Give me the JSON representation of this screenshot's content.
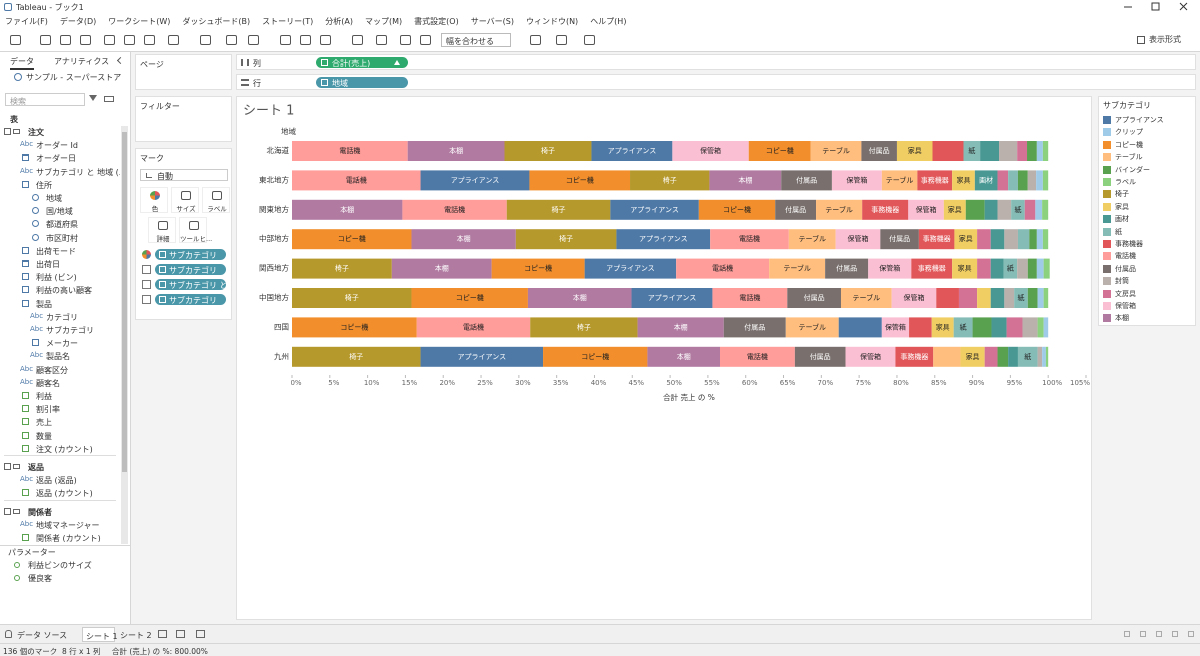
{
  "window": {
    "title": "Tableau - ブック1"
  },
  "menu": [
    "ファイル(F)",
    "データ(D)",
    "ワークシート(W)",
    "ダッシュボード(B)",
    "ストーリー(T)",
    "分析(A)",
    "マップ(M)",
    "書式設定(O)",
    "サーバー(S)",
    "ウィンドウ(N)",
    "ヘルプ(H)"
  ],
  "toolbar": {
    "fit": "幅を合わせる",
    "show_me": "表示形式"
  },
  "data_pane": {
    "tabs": [
      "データ",
      "アナリティクス"
    ],
    "source": "サンプル - スーパーストア",
    "search": "検索",
    "table_header": "表",
    "sections": [
      {
        "name": "注文",
        "fields": [
          {
            "icon": "Abc",
            "name": "オーダー Id"
          },
          {
            "role": "date",
            "name": "オーダー日"
          },
          {
            "icon": "Abc",
            "name": "サブカテゴリ と 地域 (..."
          },
          {
            "role": "hierarchy",
            "name": "住所",
            "children": [
              {
                "role": "geo",
                "name": "地域"
              },
              {
                "role": "geo",
                "name": "国/地域"
              },
              {
                "role": "geo",
                "name": "都道府県"
              },
              {
                "role": "geo",
                "name": "市区町村"
              }
            ]
          },
          {
            "role": "dimension",
            "name": "出荷モード"
          },
          {
            "role": "date",
            "name": "出荷日"
          },
          {
            "role": "bin",
            "name": "利益 (ビン)"
          },
          {
            "role": "set",
            "name": "利益の高い顧客"
          },
          {
            "role": "hierarchy",
            "name": "製品",
            "children": [
              {
                "icon": "Abc",
                "name": "カテゴリ"
              },
              {
                "icon": "Abc",
                "name": "サブカテゴリ"
              },
              {
                "role": "dimension",
                "name": "メーカー"
              },
              {
                "icon": "Abc",
                "name": "製品名"
              }
            ]
          },
          {
            "icon": "Abc",
            "name": "顧客区分"
          },
          {
            "icon": "Abc",
            "name": "顧客名"
          },
          {
            "role": "measure",
            "name": "利益"
          },
          {
            "role": "measure",
            "name": "割引率"
          },
          {
            "role": "measure",
            "name": "売上"
          },
          {
            "role": "measure",
            "name": "数量"
          },
          {
            "role": "measure",
            "name": "注文 (カウント)"
          }
        ]
      },
      {
        "name": "返品",
        "fields": [
          {
            "icon": "Abc",
            "name": "返品 (返品)"
          },
          {
            "role": "measure",
            "name": "返品 (カウント)"
          }
        ]
      },
      {
        "name": "関係者",
        "fields": [
          {
            "icon": "Abc",
            "name": "地域マネージャー"
          },
          {
            "role": "measure",
            "name": "関係者 (カウント)"
          }
        ]
      }
    ],
    "parameters": {
      "title": "パラメーター",
      "fields": [
        "利益ビンのサイズ",
        "優良客"
      ]
    }
  },
  "cards": {
    "pages": "ページ",
    "filters": "フィルター",
    "marks": "マーク",
    "mark_type": "自動",
    "buttons": [
      "色",
      "サイズ",
      "ラベル",
      "詳細",
      "ツールヒ..."
    ],
    "pills": [
      "サブカテゴリ",
      "サブカテゴリ",
      "サブカテゴリ と...",
      "サブカテゴリ"
    ]
  },
  "shelves": {
    "columns": {
      "label": "列",
      "pill": "合計(売上)"
    },
    "rows": {
      "label": "行",
      "pill": "地域"
    }
  },
  "chart_data": {
    "type": "bar",
    "orientation": "horizontal",
    "stacked": true,
    "title": "シート 1",
    "y_header": "地域",
    "x_label": "合計 売上 の %",
    "xlim": [
      0,
      105
    ],
    "xticks": [
      {
        "value": 0,
        "label": "0%"
      },
      {
        "value": 5,
        "label": "5%"
      },
      {
        "value": 10,
        "label": "10%"
      },
      {
        "value": 15,
        "label": "15%"
      },
      {
        "value": 20,
        "label": "20%"
      },
      {
        "value": 25,
        "label": "25%"
      },
      {
        "value": 30,
        "label": "30%"
      },
      {
        "value": 35,
        "label": "35%"
      },
      {
        "value": 40,
        "label": "40%"
      },
      {
        "value": 45,
        "label": "45%"
      },
      {
        "value": 50,
        "label": "50%"
      },
      {
        "value": 55,
        "label": "55%"
      },
      {
        "value": 60,
        "label": "60%"
      },
      {
        "value": 65,
        "label": "65%"
      },
      {
        "value": 70,
        "label": "70%"
      },
      {
        "value": 75,
        "label": "75%"
      },
      {
        "value": 80,
        "label": "80%"
      },
      {
        "value": 85,
        "label": "85%"
      },
      {
        "value": 90,
        "label": "90%"
      },
      {
        "value": 95,
        "label": "95%"
      },
      {
        "value": 100,
        "label": "100%"
      },
      {
        "value": 105,
        "label": "105%"
      }
    ],
    "grid": false,
    "categories": [
      "北海道",
      "東北地方",
      "関東地方",
      "中部地方",
      "関西地方",
      "中国地方",
      "四国",
      "九州"
    ],
    "legend": {
      "title": "サブカテゴリ",
      "position": "right",
      "items": [
        {
          "name": "アプライアンス",
          "color": "#4e79a7"
        },
        {
          "name": "クリップ",
          "color": "#a0cbe8"
        },
        {
          "name": "コピー機",
          "color": "#f28e2b"
        },
        {
          "name": "テーブル",
          "color": "#ffbe7d"
        },
        {
          "name": "バインダー",
          "color": "#59a14f"
        },
        {
          "name": "ラベル",
          "color": "#8cd17d"
        },
        {
          "name": "椅子",
          "color": "#b6992d"
        },
        {
          "name": "家具",
          "color": "#f1ce63"
        },
        {
          "name": "画材",
          "color": "#499894"
        },
        {
          "name": "紙",
          "color": "#86bcb6"
        },
        {
          "name": "事務機器",
          "color": "#e15759"
        },
        {
          "name": "電話機",
          "color": "#ff9d9a"
        },
        {
          "name": "付属品",
          "color": "#79706e"
        },
        {
          "name": "封筒",
          "color": "#bab0ac"
        },
        {
          "name": "文房具",
          "color": "#d37295"
        },
        {
          "name": "保管箱",
          "color": "#fabfd2"
        },
        {
          "name": "本棚",
          "color": "#b07aa1"
        }
      ]
    },
    "bars": [
      [
        {
          "name": "電話機",
          "value": 15.3
        },
        {
          "name": "本棚",
          "value": 12.8
        },
        {
          "name": "椅子",
          "value": 11.5
        },
        {
          "name": "アプライアンス",
          "value": 10.7
        },
        {
          "name": "保管箱",
          "value": 10.1
        },
        {
          "name": "コピー機",
          "value": 8.2
        },
        {
          "name": "テーブル",
          "value": 6.7
        },
        {
          "name": "付属品",
          "value": 4.7
        },
        {
          "name": "家具",
          "value": 4.7
        },
        {
          "name": "事務機器",
          "value": 4.1
        },
        {
          "name": "紙",
          "value": 2.2
        },
        {
          "name": "画材",
          "value": 2.5
        },
        {
          "name": "封筒",
          "value": 2.4
        },
        {
          "name": "文房具",
          "value": 1.3
        },
        {
          "name": "バインダー",
          "value": 1.3
        },
        {
          "name": "クリップ",
          "value": 0.8
        },
        {
          "name": "ラベル",
          "value": 0.7
        }
      ],
      [
        {
          "name": "電話機",
          "value": 17.0
        },
        {
          "name": "アプライアンス",
          "value": 14.4
        },
        {
          "name": "コピー機",
          "value": 13.3
        },
        {
          "name": "椅子",
          "value": 10.5
        },
        {
          "name": "本棚",
          "value": 9.5
        },
        {
          "name": "付属品",
          "value": 6.7
        },
        {
          "name": "保管箱",
          "value": 6.6
        },
        {
          "name": "テーブル",
          "value": 4.7
        },
        {
          "name": "事務機器",
          "value": 4.6
        },
        {
          "name": "家具",
          "value": 3.0
        },
        {
          "name": "画材",
          "value": 3.0
        },
        {
          "name": "文房具",
          "value": 1.4
        },
        {
          "name": "紙",
          "value": 1.3
        },
        {
          "name": "バインダー",
          "value": 1.3
        },
        {
          "name": "封筒",
          "value": 1.1
        },
        {
          "name": "クリップ",
          "value": 0.9
        },
        {
          "name": "ラベル",
          "value": 0.7
        }
      ],
      [
        {
          "name": "本棚",
          "value": 14.6
        },
        {
          "name": "電話機",
          "value": 13.8
        },
        {
          "name": "椅子",
          "value": 13.7
        },
        {
          "name": "アプライアンス",
          "value": 11.7
        },
        {
          "name": "コピー機",
          "value": 10.1
        },
        {
          "name": "付属品",
          "value": 5.4
        },
        {
          "name": "テーブル",
          "value": 6.1
        },
        {
          "name": "事務機器",
          "value": 6.1
        },
        {
          "name": "保管箱",
          "value": 4.7
        },
        {
          "name": "家具",
          "value": 2.9
        },
        {
          "name": "バインダー",
          "value": 2.5
        },
        {
          "name": "画材",
          "value": 1.7
        },
        {
          "name": "封筒",
          "value": 1.8
        },
        {
          "name": "紙",
          "value": 1.8
        },
        {
          "name": "文房具",
          "value": 1.4
        },
        {
          "name": "クリップ",
          "value": 0.9
        },
        {
          "name": "ラベル",
          "value": 0.8
        }
      ],
      [
        {
          "name": "コピー機",
          "value": 15.8
        },
        {
          "name": "本棚",
          "value": 13.8
        },
        {
          "name": "椅子",
          "value": 13.3
        },
        {
          "name": "アプライアンス",
          "value": 12.4
        },
        {
          "name": "電話機",
          "value": 10.4
        },
        {
          "name": "テーブル",
          "value": 6.2
        },
        {
          "name": "保管箱",
          "value": 5.9
        },
        {
          "name": "付属品",
          "value": 5.1
        },
        {
          "name": "事務機器",
          "value": 4.7
        },
        {
          "name": "家具",
          "value": 3.0
        },
        {
          "name": "文房具",
          "value": 1.8
        },
        {
          "name": "画材",
          "value": 1.8
        },
        {
          "name": "封筒",
          "value": 1.8
        },
        {
          "name": "紙",
          "value": 1.5
        },
        {
          "name": "バインダー",
          "value": 1.0
        },
        {
          "name": "クリップ",
          "value": 0.8
        },
        {
          "name": "ラベル",
          "value": 0.7
        }
      ],
      [
        {
          "name": "椅子",
          "value": 13.2
        },
        {
          "name": "本棚",
          "value": 13.2
        },
        {
          "name": "コピー機",
          "value": 12.3
        },
        {
          "name": "アプライアンス",
          "value": 12.1
        },
        {
          "name": "電話機",
          "value": 12.3
        },
        {
          "name": "テーブル",
          "value": 7.4
        },
        {
          "name": "付属品",
          "value": 5.7
        },
        {
          "name": "保管箱",
          "value": 5.7
        },
        {
          "name": "事務機器",
          "value": 5.4
        },
        {
          "name": "家具",
          "value": 3.3
        },
        {
          "name": "文房具",
          "value": 1.8
        },
        {
          "name": "画材",
          "value": 1.7
        },
        {
          "name": "紙",
          "value": 1.8
        },
        {
          "name": "封筒",
          "value": 1.4
        },
        {
          "name": "バインダー",
          "value": 1.2
        },
        {
          "name": "クリップ",
          "value": 0.9
        },
        {
          "name": "ラベル",
          "value": 0.8
        }
      ],
      [
        {
          "name": "椅子",
          "value": 15.8
        },
        {
          "name": "コピー機",
          "value": 15.4
        },
        {
          "name": "本棚",
          "value": 13.7
        },
        {
          "name": "アプライアンス",
          "value": 10.7
        },
        {
          "name": "電話機",
          "value": 9.9
        },
        {
          "name": "付属品",
          "value": 7.1
        },
        {
          "name": "テーブル",
          "value": 6.7
        },
        {
          "name": "保管箱",
          "value": 5.9
        },
        {
          "name": "事務機器",
          "value": 3.0
        },
        {
          "name": "文房具",
          "value": 2.4
        },
        {
          "name": "家具",
          "value": 1.8
        },
        {
          "name": "画材",
          "value": 1.8
        },
        {
          "name": "封筒",
          "value": 1.3
        },
        {
          "name": "紙",
          "value": 1.8
        },
        {
          "name": "バインダー",
          "value": 1.3
        },
        {
          "name": "クリップ",
          "value": 0.8
        },
        {
          "name": "ラベル",
          "value": 0.6
        }
      ],
      [
        {
          "name": "コピー機",
          "value": 16.5
        },
        {
          "name": "電話機",
          "value": 15.0
        },
        {
          "name": "椅子",
          "value": 14.2
        },
        {
          "name": "本棚",
          "value": 11.4
        },
        {
          "name": "付属品",
          "value": 8.2
        },
        {
          "name": "テーブル",
          "value": 7.0
        },
        {
          "name": "アプライアンス",
          "value": 5.7
        },
        {
          "name": "保管箱",
          "value": 3.6
        },
        {
          "name": "事務機器",
          "value": 3.0
        },
        {
          "name": "家具",
          "value": 2.9
        },
        {
          "name": "紙",
          "value": 2.5
        },
        {
          "name": "バインダー",
          "value": 2.5
        },
        {
          "name": "画材",
          "value": 2.0
        },
        {
          "name": "文房具",
          "value": 2.1
        },
        {
          "name": "封筒",
          "value": 2.0
        },
        {
          "name": "ラベル",
          "value": 0.8
        },
        {
          "name": "クリップ",
          "value": 0.6
        }
      ],
      [
        {
          "name": "椅子",
          "value": 17.0
        },
        {
          "name": "アプライアンス",
          "value": 16.2
        },
        {
          "name": "コピー機",
          "value": 13.8
        },
        {
          "name": "本棚",
          "value": 9.6
        },
        {
          "name": "電話機",
          "value": 9.9
        },
        {
          "name": "付属品",
          "value": 6.7
        },
        {
          "name": "保管箱",
          "value": 6.6
        },
        {
          "name": "事務機器",
          "value": 5.0
        },
        {
          "name": "テーブル",
          "value": 3.6
        },
        {
          "name": "家具",
          "value": 3.2
        },
        {
          "name": "文房具",
          "value": 1.7
        },
        {
          "name": "バインダー",
          "value": 1.4
        },
        {
          "name": "画材",
          "value": 1.3
        },
        {
          "name": "紙",
          "value": 2.6
        },
        {
          "name": "封筒",
          "value": 0.6
        },
        {
          "name": "クリップ",
          "value": 0.5
        },
        {
          "name": "ラベル",
          "value": 0.3
        }
      ]
    ]
  },
  "sheet_tabs": [
    "データ ソース",
    "シート 1",
    "シート 2"
  ],
  "status": [
    "136 個のマーク",
    "8 行 x 1 列",
    "合計 (売上) の %: 800.00%"
  ]
}
